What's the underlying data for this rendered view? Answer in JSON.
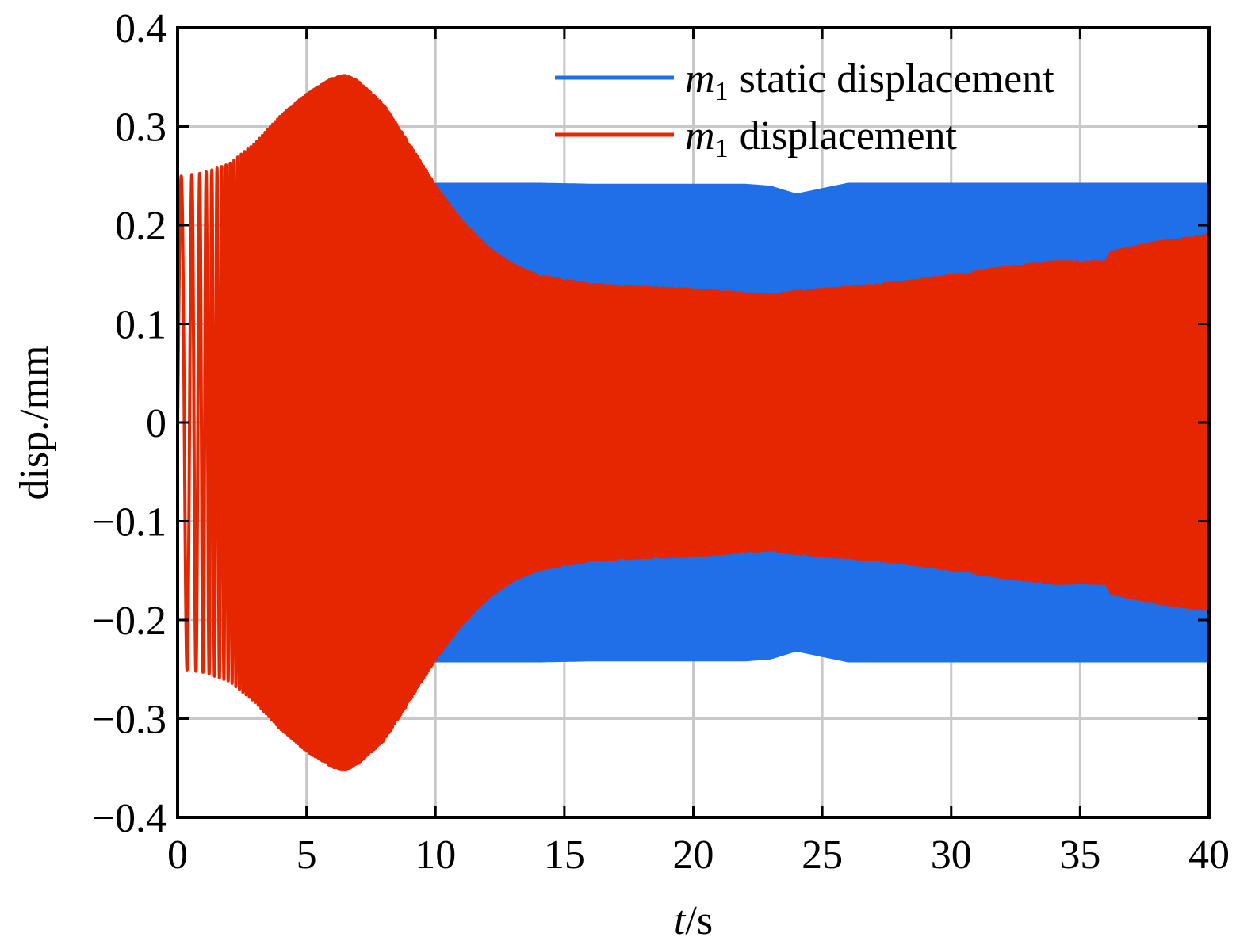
{
  "chart_data": {
    "type": "line",
    "xlabel": {
      "italic": "t",
      "rest": "/s"
    },
    "ylabel": "disp./mm",
    "xlim": [
      0,
      40
    ],
    "ylim": [
      -0.4,
      0.4
    ],
    "xticks": [
      0,
      5,
      10,
      15,
      20,
      25,
      30,
      35,
      40
    ],
    "yticks": [
      -0.4,
      -0.3,
      -0.2,
      -0.1,
      0,
      0.1,
      0.2,
      0.3,
      0.4
    ],
    "xtick_labels": [
      "0",
      "5",
      "10",
      "15",
      "20",
      "25",
      "30",
      "35",
      "40"
    ],
    "ytick_labels": [
      "−0.4",
      "−0.3",
      "−0.2",
      "−0.1",
      "0",
      "0.1",
      "0.2",
      "0.3",
      "0.4"
    ],
    "grid": true,
    "legend_position": "top-right",
    "series": [
      {
        "name": "static displacement",
        "mass_label": "m",
        "mass_subscript": "1",
        "color": "#1f6fe8",
        "style": "filled-oscillation",
        "envelope": {
          "t": [
            10,
            12,
            14,
            16,
            18,
            20,
            22,
            23,
            24,
            26,
            28,
            30,
            32,
            34,
            35.5,
            36,
            40
          ],
          "amp": [
            0.243,
            0.243,
            0.243,
            0.242,
            0.242,
            0.242,
            0.242,
            0.24,
            0.232,
            0.243,
            0.243,
            0.243,
            0.243,
            0.243,
            0.243,
            0.243,
            0.243
          ]
        }
      },
      {
        "name": "displacement",
        "mass_label": "m",
        "mass_subscript": "1",
        "color": "#e62600",
        "style": "filled-oscillation",
        "envelope": {
          "t": [
            0,
            1,
            2,
            3,
            4,
            5,
            6,
            6.5,
            7,
            8,
            9,
            10,
            11,
            12,
            13,
            14,
            16,
            18,
            20,
            22,
            23,
            24,
            26,
            28,
            30,
            32,
            34,
            36,
            36.2,
            38,
            40
          ],
          "amp": [
            0.249,
            0.253,
            0.262,
            0.283,
            0.311,
            0.333,
            0.349,
            0.352,
            0.346,
            0.322,
            0.282,
            0.24,
            0.205,
            0.178,
            0.16,
            0.149,
            0.14,
            0.137,
            0.135,
            0.131,
            0.129,
            0.133,
            0.137,
            0.142,
            0.149,
            0.157,
            0.163,
            0.163,
            0.173,
            0.183,
            0.19
          ]
        }
      }
    ]
  }
}
